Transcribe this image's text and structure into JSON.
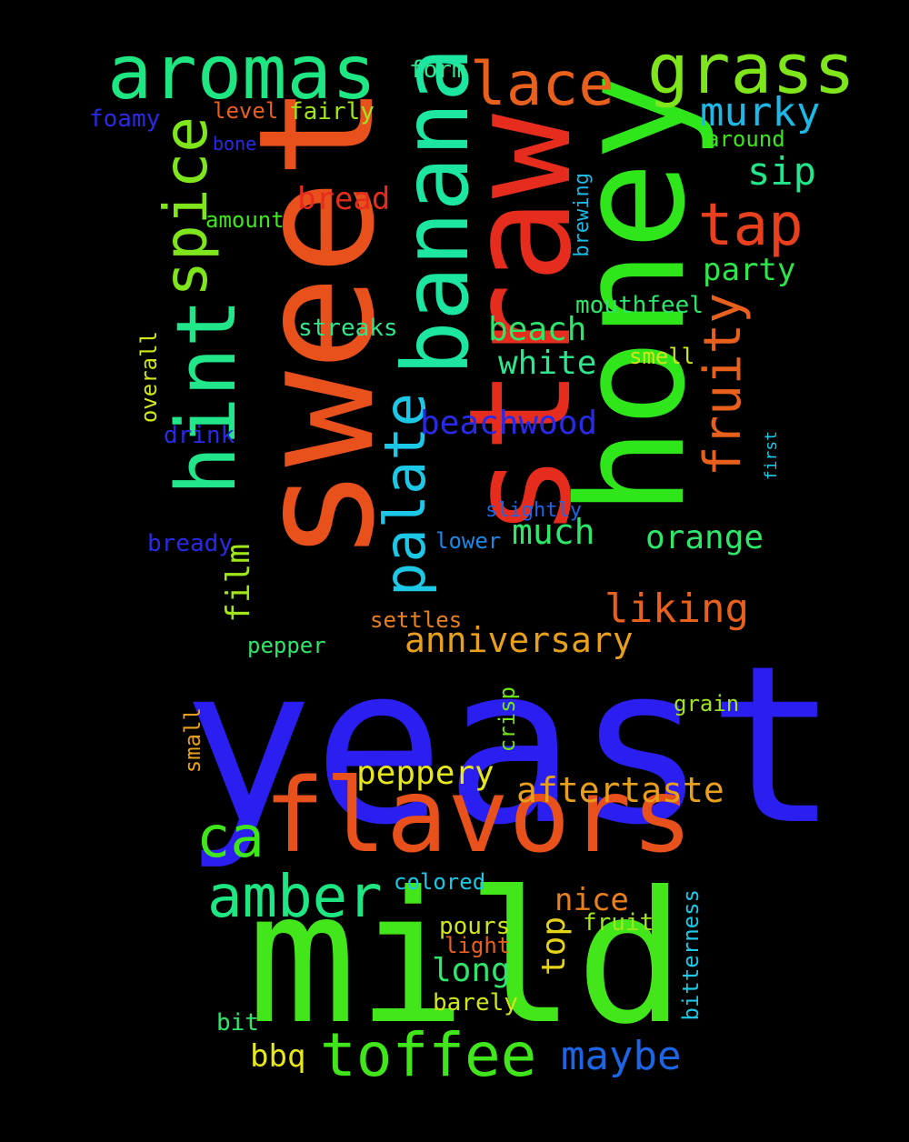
{
  "background": "#000000",
  "words": [
    {
      "id": "yeast",
      "text": "yeast",
      "color": "#2a1ff0"
    },
    {
      "id": "mild",
      "text": "mild",
      "color": "#42e61a"
    },
    {
      "id": "sweet",
      "text": "sweet",
      "color": "#e8501c"
    },
    {
      "id": "straw",
      "text": "straw",
      "color": "#e62c1c"
    },
    {
      "id": "honey",
      "text": "honey",
      "color": "#2ee61a"
    },
    {
      "id": "flavors",
      "text": "flavors",
      "color": "#e8501c"
    },
    {
      "id": "banana",
      "text": "banana",
      "color": "#1ce6a0"
    },
    {
      "id": "hint",
      "text": "hint",
      "color": "#22e68a"
    },
    {
      "id": "aromas",
      "text": "aromas",
      "color": "#1ee682"
    },
    {
      "id": "grass",
      "text": "grass",
      "color": "#7ee61a"
    },
    {
      "id": "lace",
      "text": "lace",
      "color": "#e8601c"
    },
    {
      "id": "toffee",
      "text": "toffee",
      "color": "#40e61a"
    },
    {
      "id": "spice",
      "text": "spice",
      "color": "#7ee61a"
    },
    {
      "id": "palate",
      "text": "palate",
      "color": "#1cc8e6"
    },
    {
      "id": "amber",
      "text": "amber",
      "color": "#1ee682"
    },
    {
      "id": "tap",
      "text": "tap",
      "color": "#e8401c"
    },
    {
      "id": "fruity",
      "text": "fruity",
      "color": "#e8601c"
    },
    {
      "id": "ca",
      "text": "ca",
      "color": "#3ee61a"
    },
    {
      "id": "maybe",
      "text": "maybe",
      "color": "#1c66e6"
    },
    {
      "id": "murky",
      "text": "murky",
      "color": "#1cb8e6"
    },
    {
      "id": "liking",
      "text": "liking",
      "color": "#e8601c"
    },
    {
      "id": "anniversary",
      "text": "anniversary",
      "color": "#e8a01c"
    },
    {
      "id": "aftertaste",
      "text": "aftertaste",
      "color": "#e8a01c"
    },
    {
      "id": "beachwood",
      "text": "beachwood",
      "color": "#2a2ae6"
    },
    {
      "id": "peppery",
      "text": "peppery",
      "color": "#e6e61a"
    },
    {
      "id": "much",
      "text": "much",
      "color": "#2ee66a"
    },
    {
      "id": "beach",
      "text": "beach",
      "color": "#2ee66a"
    },
    {
      "id": "white",
      "text": "white",
      "color": "#2ee68e"
    },
    {
      "id": "orange",
      "text": "orange",
      "color": "#2ee66a"
    },
    {
      "id": "sip",
      "text": "sip",
      "color": "#22e68a"
    },
    {
      "id": "party",
      "text": "party",
      "color": "#2ee64a"
    },
    {
      "id": "bread",
      "text": "bread",
      "color": "#e62c1c"
    },
    {
      "id": "film",
      "text": "film",
      "color": "#a0e61a"
    },
    {
      "id": "top",
      "text": "top",
      "color": "#e6d21a"
    },
    {
      "id": "long",
      "text": "long",
      "color": "#2ee66a"
    },
    {
      "id": "nice",
      "text": "nice",
      "color": "#e8801c"
    },
    {
      "id": "bbq",
      "text": "bbq",
      "color": "#e6e61a"
    },
    {
      "id": "mouthfeel",
      "text": "mouthfeel",
      "color": "#2ee66a"
    },
    {
      "id": "streaks",
      "text": "streaks",
      "color": "#2ee68e"
    },
    {
      "id": "form",
      "text": "form",
      "color": "#2ee68e"
    },
    {
      "id": "fairly",
      "text": "fairly",
      "color": "#a0e61a"
    },
    {
      "id": "level",
      "text": "level",
      "color": "#e8601c"
    },
    {
      "id": "foamy",
      "text": "foamy",
      "color": "#2a2ae6"
    },
    {
      "id": "bone",
      "text": "bone",
      "color": "#2a2ae6"
    },
    {
      "id": "amount",
      "text": "amount",
      "color": "#3ee61a"
    },
    {
      "id": "around",
      "text": "around",
      "color": "#3ee61a"
    },
    {
      "id": "brewing",
      "text": "brewing",
      "color": "#1cb8e6"
    },
    {
      "id": "smell",
      "text": "smell",
      "color": "#d0e61a"
    },
    {
      "id": "overall",
      "text": "overall",
      "color": "#d0e61a"
    },
    {
      "id": "drink",
      "text": "drink",
      "color": "#2a2ae6"
    },
    {
      "id": "first",
      "text": "first",
      "color": "#1cc8e6"
    },
    {
      "id": "slightly",
      "text": "slightly",
      "color": "#1c66e6"
    },
    {
      "id": "bready",
      "text": "bready",
      "color": "#2a2ae6"
    },
    {
      "id": "lower",
      "text": "lower",
      "color": "#1c88e6"
    },
    {
      "id": "settles",
      "text": "settles",
      "color": "#e8801c"
    },
    {
      "id": "pepper",
      "text": "pepper",
      "color": "#2ee66a"
    },
    {
      "id": "crisp",
      "text": "crisp",
      "color": "#6ee61a"
    },
    {
      "id": "grain",
      "text": "grain",
      "color": "#a0e61a"
    },
    {
      "id": "small",
      "text": "small",
      "color": "#e8a01c"
    },
    {
      "id": "colored",
      "text": "colored",
      "color": "#1cc8e6"
    },
    {
      "id": "fruit",
      "text": "fruit",
      "color": "#a0e61a"
    },
    {
      "id": "pours",
      "text": "pours",
      "color": "#d0e61a"
    },
    {
      "id": "light",
      "text": "light",
      "color": "#e8601c"
    },
    {
      "id": "barely",
      "text": "barely",
      "color": "#d0e61a"
    },
    {
      "id": "bitterness",
      "text": "bitterness",
      "color": "#1cc8e6"
    },
    {
      "id": "bit",
      "text": "bit",
      "color": "#2ee66a"
    }
  ]
}
